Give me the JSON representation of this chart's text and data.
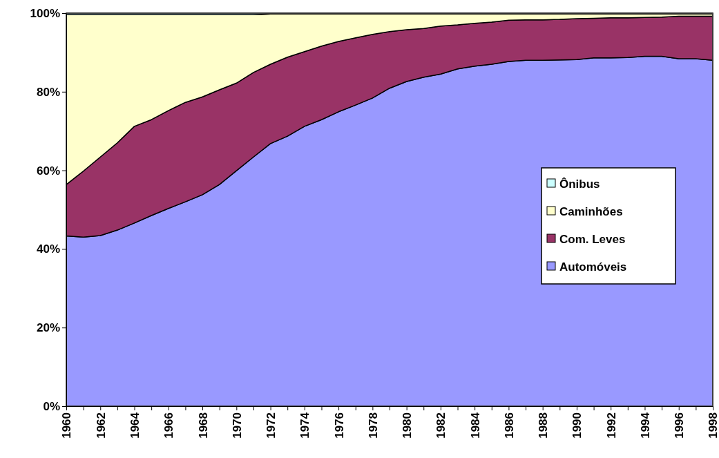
{
  "chart_data": {
    "type": "area",
    "stacked": true,
    "categories": [
      "1960",
      null,
      "1962",
      null,
      "1964",
      null,
      "1966",
      null,
      "1968",
      null,
      "1970",
      null,
      "1972",
      null,
      "1974",
      null,
      "1976",
      null,
      "1978",
      null,
      "1980",
      null,
      "1982",
      null,
      "1984",
      null,
      "1986",
      null,
      "1988",
      null,
      "1990",
      null,
      "1992",
      null,
      "1994",
      null,
      "1996",
      null,
      "1998"
    ],
    "series": [
      {
        "name": "Automóveis",
        "color": "#9999ff",
        "values": [
          43.3,
          43.0,
          43.4,
          44.8,
          46.6,
          48.5,
          50.3,
          52.0,
          53.8,
          56.4,
          59.9,
          63.4,
          66.8,
          68.7,
          71.2,
          72.9,
          74.9,
          76.6,
          78.4,
          80.9,
          82.6,
          83.7,
          84.5,
          85.8,
          86.5,
          87.0,
          87.7,
          88.0,
          88.0,
          88.1,
          88.2,
          88.6,
          88.6,
          88.7,
          89.0,
          89.0,
          88.4,
          88.4,
          88.0
        ]
      },
      {
        "name": "Com. Leves",
        "color": "#993366",
        "values": [
          13.1,
          16.8,
          20.0,
          22.2,
          24.6,
          24.4,
          24.9,
          25.3,
          24.9,
          24.1,
          22.3,
          21.5,
          20.2,
          20.1,
          19.0,
          18.7,
          17.9,
          17.1,
          16.2,
          14.4,
          13.2,
          12.4,
          12.2,
          11.2,
          10.9,
          10.7,
          10.5,
          10.3,
          10.3,
          10.3,
          10.4,
          10.1,
          10.2,
          10.1,
          9.9,
          10.0,
          10.8,
          10.8,
          11.2
        ]
      },
      {
        "name": "Caminhões",
        "color": "#ffffcc",
        "values": [
          43.2,
          39.8,
          36.2,
          32.6,
          28.4,
          26.7,
          24.4,
          22.3,
          20.9,
          19.1,
          17.4,
          14.7,
          12.8,
          11.0,
          9.6,
          8.2,
          7.0,
          6.1,
          5.2,
          4.5,
          4.0,
          3.7,
          3.1,
          2.8,
          2.4,
          2.1,
          1.6,
          1.5,
          1.5,
          1.4,
          1.2,
          1.1,
          1.0,
          1.0,
          0.9,
          0.8,
          0.6,
          0.6,
          0.6
        ]
      },
      {
        "name": "Ônibus",
        "color": "#ccffff",
        "values": [
          0.4,
          0.4,
          0.4,
          0.4,
          0.4,
          0.4,
          0.4,
          0.4,
          0.4,
          0.4,
          0.4,
          0.4,
          0.2,
          0.2,
          0.2,
          0.2,
          0.2,
          0.2,
          0.2,
          0.2,
          0.2,
          0.2,
          0.2,
          0.2,
          0.2,
          0.2,
          0.2,
          0.2,
          0.2,
          0.2,
          0.2,
          0.2,
          0.2,
          0.2,
          0.2,
          0.2,
          0.2,
          0.2,
          0.2
        ]
      }
    ],
    "ylim": [
      0,
      100
    ],
    "yticks": [
      {
        "value": 0,
        "label": "0%"
      },
      {
        "value": 20,
        "label": "20%"
      },
      {
        "value": 40,
        "label": "40%"
      },
      {
        "value": 60,
        "label": "60%"
      },
      {
        "value": 80,
        "label": "80%"
      },
      {
        "value": 100,
        "label": "100%"
      }
    ],
    "legend": "right"
  }
}
